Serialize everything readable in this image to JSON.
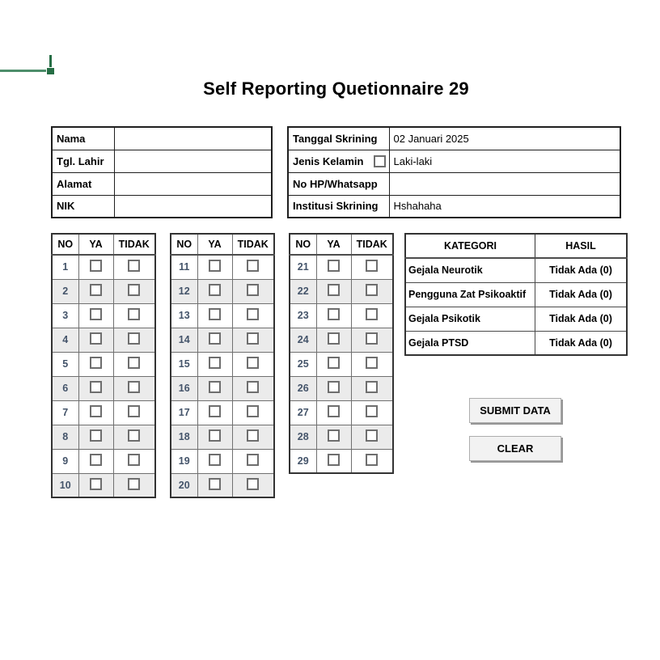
{
  "app": {
    "title": "Self Reporting Quetionnaire 29"
  },
  "selection_marker": {
    "description": "spreadsheet cell selection border fragment with fill handle",
    "color": "#217346"
  },
  "patient_form": {
    "rows": [
      {
        "label": "Nama",
        "value": ""
      },
      {
        "label": "Tgl. Lahir",
        "value": ""
      },
      {
        "label": "Alamat",
        "value": ""
      },
      {
        "label": "NIK",
        "value": ""
      }
    ]
  },
  "screening_form": {
    "rows": [
      {
        "label": "Tanggal Skrining",
        "value": "02 Januari 2025",
        "has_checkbox": false
      },
      {
        "label": "Jenis Kelamin",
        "value": "Laki-laki",
        "has_checkbox": true,
        "checkbox_checked": false
      },
      {
        "label": "No HP/Whatsapp",
        "value": "",
        "has_checkbox": false
      },
      {
        "label": "Institusi Skrining",
        "value": "Hshahaha",
        "has_checkbox": false
      }
    ]
  },
  "question_tables": {
    "headers": [
      "NO",
      "YA",
      "TIDAK"
    ],
    "tables": [
      {
        "start": 1,
        "end": 10
      },
      {
        "start": 11,
        "end": 20
      },
      {
        "start": 21,
        "end": 29
      }
    ],
    "all_checkboxes_state": "unchecked"
  },
  "results_table": {
    "headers": [
      "KATEGORI",
      "HASIL"
    ],
    "rows": [
      {
        "kategori": "Gejala Neurotik",
        "hasil": "Tidak Ada (0)"
      },
      {
        "kategori": "Pengguna Zat Psikoaktif",
        "hasil": "Tidak Ada (0)"
      },
      {
        "kategori": "Gejala Psikotik",
        "hasil": "Tidak Ada (0)"
      },
      {
        "kategori": "Gejala PTSD",
        "hasil": "Tidak Ada (0)"
      }
    ]
  },
  "buttons": {
    "submit": "SUBMIT DATA",
    "clear": "CLEAR"
  },
  "colors": {
    "selection_green_dark": "#266e45",
    "selection_green_light": "#4d8e6b",
    "row_alt": "#ebebeb",
    "grid_gray": "#707070",
    "border_dark": "#1f1f1f",
    "number_text": "#44546a",
    "button_face": "#f2f2f2",
    "button_shadow": "#969696"
  }
}
